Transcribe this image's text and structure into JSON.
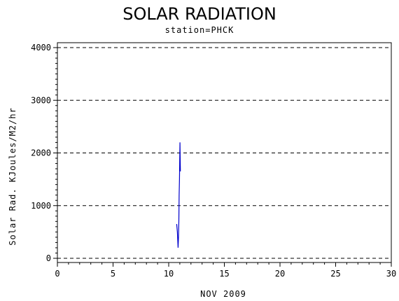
{
  "chart_data": {
    "type": "line",
    "title": "SOLAR RADIATION",
    "subtitle": "station=PHCK",
    "xlabel": "NOV 2009",
    "ylabel": "Solar Rad. KJoules/M2/hr",
    "xlim": [
      0,
      30
    ],
    "ylim": [
      0,
      4000
    ],
    "x_ticks": [
      0,
      5,
      10,
      15,
      20,
      25,
      30
    ],
    "y_ticks": [
      0,
      1000,
      2000,
      3000,
      4000
    ],
    "grid": "horizontal dashed",
    "series": [
      {
        "color": "#0000cc",
        "x": [
          10.72,
          10.78,
          10.84,
          10.88,
          10.91,
          10.94,
          10.97,
          10.99,
          11.01,
          11.03,
          11.05
        ],
        "y": [
          650,
          500,
          200,
          400,
          700,
          1200,
          1500,
          1800,
          2200,
          1900,
          1650
        ]
      }
    ]
  }
}
